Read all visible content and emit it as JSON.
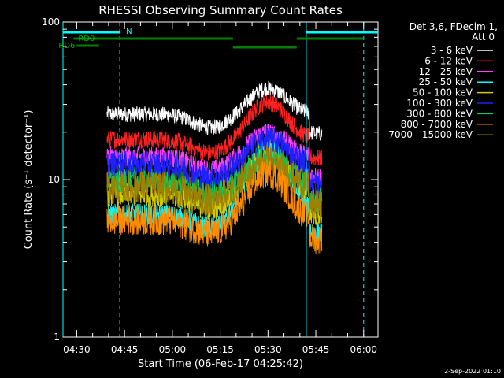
{
  "chart_data": {
    "type": "line",
    "title": "RHESSI Observing Summary Count Rates",
    "xlabel": "Start Time (06-Feb-17 04:25:42)",
    "ylabel": "Count Rate (s⁻¹ detector⁻¹)",
    "yscale": "log",
    "ylim": [
      1,
      100
    ],
    "xlim": [
      "04:25:42",
      "06:04:30"
    ],
    "x_ticks": [
      "04:30",
      "04:45",
      "05:00",
      "05:15",
      "05:30",
      "05:45",
      "06:00"
    ],
    "y_ticks": [
      "1",
      "10",
      "100"
    ],
    "legend_header": [
      "Det 3,6, FDecim 1,",
      "Att 0"
    ],
    "legend_position": "right",
    "data_start": "04:39:30",
    "data_end": "05:47:00",
    "peak_time": "05:30",
    "series": [
      {
        "name": "3 - 6 keV",
        "color": "#ffffff",
        "plateau": 26,
        "peak": 38
      },
      {
        "name": "6 - 12 keV",
        "color": "#ff2020",
        "plateau": 18,
        "peak": 31
      },
      {
        "name": "12 - 25 keV",
        "color": "#ff40ff",
        "plateau": 14,
        "peak": 20
      },
      {
        "name": "25 - 50 keV",
        "color": "#00ffff",
        "plateau": 6,
        "peak": 16
      },
      {
        "name": "50 - 100 keV",
        "color": "#d0d000",
        "plateau": 8,
        "peak": 15
      },
      {
        "name": "100 - 300 keV",
        "color": "#2020ff",
        "plateau": 12.5,
        "peak": 18
      },
      {
        "name": "300 - 800 keV",
        "color": "#00d060",
        "plateau": 10,
        "peak": 14
      },
      {
        "name": "800 - 7000 keV",
        "color": "#ff8c00",
        "plateau": 5.5,
        "peak": 11
      },
      {
        "name": "7000 - 15000 keV",
        "color": "#a08000",
        "plateau": 9,
        "peak": 13
      }
    ],
    "flags": [
      {
        "label": "N",
        "color": "#00ffff",
        "intervals": [
          [
            "04:25:42",
            "04:43:30"
          ],
          [
            "05:42:00",
            "06:04:30"
          ]
        ]
      },
      {
        "label": "RD0",
        "color": "#008000",
        "intervals": [
          [
            "04:29:00",
            "05:19:00"
          ],
          [
            "05:39:00",
            "06:00:00"
          ]
        ]
      },
      {
        "label": "",
        "color": "#008000",
        "intervals": [
          [
            "05:19:00",
            "05:39:00"
          ]
        ]
      },
      {
        "label": "RD6",
        "color": "#008000",
        "intervals": [
          [
            "04:30:00",
            "04:37:00"
          ]
        ]
      }
    ],
    "vlines": [
      {
        "time": "04:25:42",
        "style": "solid",
        "color": "#00ffff"
      },
      {
        "time": "04:43:30",
        "style": "dashed",
        "color": "#00ffff"
      },
      {
        "time": "05:42:00",
        "style": "solid",
        "color": "#00ffff"
      },
      {
        "time": "06:00:00",
        "style": "dashed",
        "color": "#00ffff"
      }
    ]
  },
  "timestamp": "2-Sep-2022 01:10"
}
